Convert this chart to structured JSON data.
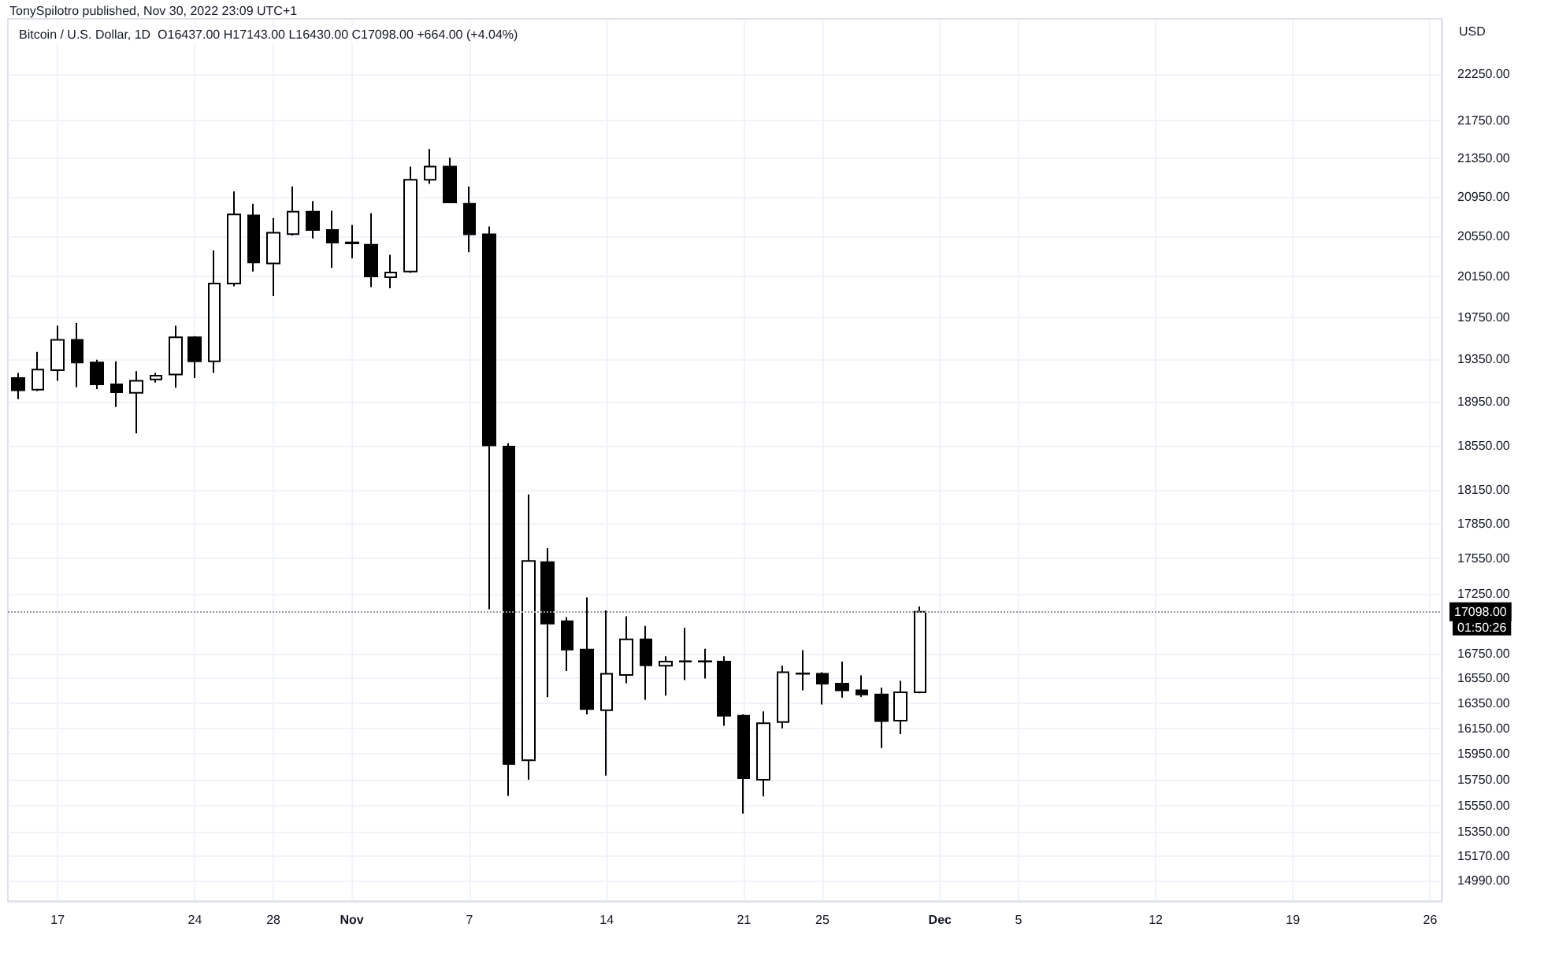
{
  "chart_data": {
    "type": "candlestick",
    "title": "TonySpilotro published, Nov 30, 2022 23:09 UTC+1",
    "subtitle": "Bitcoin / U.S. Dollar, 1D  O16437.00 H17143.00 L16430.00 C17098.00 +664.00 (+4.04%)",
    "ylabel": "USD",
    "x": [
      "2022-10-15",
      "2022-10-16",
      "2022-10-17",
      "2022-10-18",
      "2022-10-19",
      "2022-10-20",
      "2022-10-21",
      "2022-10-22",
      "2022-10-23",
      "2022-10-24",
      "2022-10-25",
      "2022-10-26",
      "2022-10-27",
      "2022-10-28",
      "2022-10-29",
      "2022-10-30",
      "2022-10-31",
      "2022-11-01",
      "2022-11-02",
      "2022-11-03",
      "2022-11-04",
      "2022-11-05",
      "2022-11-06",
      "2022-11-07",
      "2022-11-08",
      "2022-11-09",
      "2022-11-10",
      "2022-11-11",
      "2022-11-12",
      "2022-11-13",
      "2022-11-14",
      "2022-11-15",
      "2022-11-16",
      "2022-11-17",
      "2022-11-18",
      "2022-11-19",
      "2022-11-20",
      "2022-11-21",
      "2022-11-22",
      "2022-11-23",
      "2022-11-24",
      "2022-11-25",
      "2022-11-26",
      "2022-11-27",
      "2022-11-28",
      "2022-11-29",
      "2022-11-30"
    ],
    "ohlc": [
      [
        19172,
        19220,
        18975,
        19058
      ],
      [
        19064,
        19420,
        19050,
        19253
      ],
      [
        19246,
        19670,
        19147,
        19534
      ],
      [
        19534,
        19697,
        19087,
        19320
      ],
      [
        19320,
        19345,
        19070,
        19113
      ],
      [
        19113,
        19330,
        18902,
        19040
      ],
      [
        19035,
        19237,
        18660,
        19147
      ],
      [
        19160,
        19220,
        19130,
        19195
      ],
      [
        19206,
        19670,
        19083,
        19560
      ],
      [
        19560,
        19570,
        19172,
        19330
      ],
      [
        19330,
        20408,
        19220,
        20081
      ],
      [
        20081,
        21008,
        20054,
        20773
      ],
      [
        20763,
        20880,
        20200,
        20289
      ],
      [
        20280,
        20736,
        19958,
        20587
      ],
      [
        20572,
        21058,
        20560,
        20800
      ],
      [
        20800,
        20910,
        20530,
        20614
      ],
      [
        20614,
        20810,
        20236,
        20487
      ],
      [
        20490,
        20665,
        20330,
        20480
      ],
      [
        20467,
        20785,
        20046,
        20150
      ],
      [
        20143,
        20365,
        20035,
        20190
      ],
      [
        20200,
        21265,
        20185,
        21127
      ],
      [
        21127,
        21448,
        21085,
        21265
      ],
      [
        21265,
        21358,
        20890,
        20895
      ],
      [
        20880,
        21058,
        20392,
        20570
      ],
      [
        20570,
        20650,
        17120,
        18550
      ],
      [
        18540,
        18570,
        15625,
        15870
      ],
      [
        15900,
        18110,
        15748,
        17530
      ],
      [
        17520,
        17640,
        16398,
        17000
      ],
      [
        17020,
        17055,
        16610,
        16785
      ],
      [
        16785,
        17220,
        16260,
        16303
      ],
      [
        16294,
        17110,
        15780,
        16587
      ],
      [
        16578,
        17060,
        16510,
        16870
      ],
      [
        16870,
        16980,
        16377,
        16656
      ],
      [
        16652,
        16730,
        16410,
        16686
      ],
      [
        16686,
        16966,
        16536,
        16690
      ],
      [
        16690,
        16792,
        16548,
        16686
      ],
      [
        16686,
        16730,
        16170,
        16250
      ],
      [
        16250,
        16260,
        15490,
        15760
      ],
      [
        15748,
        16285,
        15620,
        16190
      ],
      [
        16200,
        16652,
        16150,
        16600
      ],
      [
        16590,
        16780,
        16453,
        16587
      ],
      [
        16587,
        16600,
        16340,
        16507
      ],
      [
        16507,
        16686,
        16395,
        16453
      ],
      [
        16453,
        16575,
        16400,
        16420
      ],
      [
        16420,
        16475,
        15995,
        16207
      ],
      [
        16210,
        16530,
        16105,
        16437
      ],
      [
        16437,
        17143,
        16430,
        17098
      ]
    ],
    "log": true,
    "grid": true,
    "ylim": [
      14840,
      22860
    ],
    "yticks": [
      {
        "value": 14990,
        "label": "14990.00"
      },
      {
        "value": 15170,
        "label": "15170.00"
      },
      {
        "value": 15350,
        "label": "15350.00"
      },
      {
        "value": 15550,
        "label": "15550.00"
      },
      {
        "value": 15750,
        "label": "15750.00"
      },
      {
        "value": 15950,
        "label": "15950.00"
      },
      {
        "value": 16150,
        "label": "16150.00"
      },
      {
        "value": 16350,
        "label": "16350.00"
      },
      {
        "value": 16550,
        "label": "16550.00"
      },
      {
        "value": 16750,
        "label": "16750.00"
      },
      {
        "value": 17250,
        "label": "17250.00"
      },
      {
        "value": 17550,
        "label": "17550.00"
      },
      {
        "value": 17850,
        "label": "17850.00"
      },
      {
        "value": 18150,
        "label": "18150.00"
      },
      {
        "value": 18550,
        "label": "18550.00"
      },
      {
        "value": 18950,
        "label": "18950.00"
      },
      {
        "value": 19350,
        "label": "19350.00"
      },
      {
        "value": 19750,
        "label": "19750.00"
      },
      {
        "value": 20150,
        "label": "20150.00"
      },
      {
        "value": 20550,
        "label": "20550.00"
      },
      {
        "value": 20950,
        "label": "20950.00"
      },
      {
        "value": 21350,
        "label": "21350.00"
      },
      {
        "value": 21750,
        "label": "21750.00"
      },
      {
        "value": 22250,
        "label": "22250.00"
      }
    ],
    "xlim": [
      "2022-10-14T11:00",
      "2022-12-26T14:00"
    ],
    "xticks": [
      {
        "value": "2022-10-17",
        "label": "17"
      },
      {
        "value": "2022-10-24",
        "label": "24"
      },
      {
        "value": "2022-10-28",
        "label": "28"
      },
      {
        "value": "2022-11-01",
        "label": "Nov"
      },
      {
        "value": "2022-11-07",
        "label": "7"
      },
      {
        "value": "2022-11-14",
        "label": "14"
      },
      {
        "value": "2022-11-21",
        "label": "21"
      },
      {
        "value": "2022-11-25",
        "label": "25"
      },
      {
        "value": "2022-12-01",
        "label": "Dec"
      },
      {
        "value": "2022-12-05",
        "label": "5"
      },
      {
        "value": "2022-12-12",
        "label": "12"
      },
      {
        "value": "2022-12-19",
        "label": "19"
      },
      {
        "value": "2022-12-26",
        "label": "26"
      }
    ],
    "ref_lines": [
      {
        "axis": "y",
        "value": 17098,
        "label": "17098.00",
        "color": "#9598a1",
        "line_style": "dotted"
      }
    ],
    "annotations": [
      "01:50:26"
    ]
  }
}
